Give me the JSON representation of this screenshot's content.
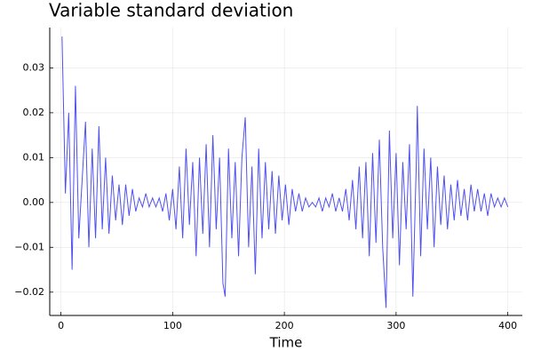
{
  "chart_data": {
    "type": "line",
    "title": "Variable standard deviation",
    "x_label": "Time",
    "x": [
      1,
      4,
      7,
      10,
      13,
      16,
      19,
      22,
      25,
      28,
      31,
      34,
      37,
      40,
      43,
      46,
      49,
      52,
      55,
      58,
      61,
      64,
      67,
      70,
      73,
      76,
      79,
      82,
      85,
      88,
      91,
      94,
      97,
      100,
      103,
      106,
      109,
      112,
      115,
      118,
      121,
      124,
      127,
      130,
      133,
      136,
      139,
      142,
      145,
      147,
      150,
      153,
      156,
      159,
      162,
      165,
      168,
      171,
      174,
      177,
      180,
      183,
      186,
      189,
      192,
      195,
      198,
      201,
      204,
      207,
      210,
      213,
      216,
      219,
      222,
      225,
      228,
      231,
      234,
      237,
      240,
      243,
      246,
      249,
      252,
      255,
      258,
      261,
      264,
      267,
      270,
      273,
      276,
      279,
      282,
      285,
      288,
      291,
      294,
      297,
      300,
      303,
      306,
      309,
      312,
      315,
      318,
      319,
      322,
      325,
      328,
      331,
      334,
      337,
      340,
      343,
      346,
      349,
      352,
      355,
      358,
      361,
      364,
      367,
      370,
      373,
      376,
      379,
      382,
      385,
      388,
      391,
      394,
      397,
      400
    ],
    "series": [
      {
        "color": "#5050f0",
        "values": [
          0.037,
          0.002,
          0.02,
          -0.015,
          0.026,
          -0.008,
          0.005,
          0.018,
          -0.01,
          0.012,
          -0.008,
          0.017,
          -0.006,
          0.01,
          -0.007,
          0.006,
          -0.004,
          0.004,
          -0.005,
          0.004,
          -0.003,
          0.003,
          -0.002,
          0.001,
          -0.001,
          0.002,
          -0.001,
          0.001,
          -0.001,
          0.001,
          -0.002,
          0.002,
          -0.004,
          0.003,
          -0.006,
          0.008,
          -0.008,
          0.012,
          -0.005,
          0.009,
          -0.012,
          0.01,
          -0.007,
          0.013,
          -0.01,
          0.015,
          -0.006,
          0.01,
          -0.018,
          -0.021,
          0.012,
          -0.008,
          0.009,
          -0.012,
          0.01,
          0.019,
          -0.01,
          0.008,
          -0.016,
          0.012,
          -0.008,
          0.009,
          -0.006,
          0.007,
          -0.007,
          0.006,
          -0.004,
          0.004,
          -0.005,
          0.003,
          -0.002,
          0.002,
          -0.002,
          0.001,
          -0.001,
          0.0,
          -0.001,
          0.001,
          -0.002,
          0.001,
          -0.001,
          0.002,
          -0.002,
          0.001,
          -0.002,
          0.003,
          -0.004,
          0.005,
          -0.006,
          0.008,
          -0.008,
          0.009,
          -0.012,
          0.011,
          -0.009,
          0.014,
          -0.01,
          -0.0235,
          0.016,
          -0.008,
          0.011,
          -0.014,
          0.009,
          -0.006,
          0.013,
          -0.021,
          0.008,
          0.0215,
          -0.012,
          0.012,
          -0.006,
          0.01,
          -0.01,
          0.008,
          -0.005,
          0.006,
          -0.006,
          0.004,
          -0.004,
          0.005,
          -0.003,
          0.003,
          -0.004,
          0.004,
          -0.002,
          0.003,
          -0.002,
          0.002,
          -0.003,
          0.002,
          -0.001,
          0.001,
          -0.001,
          0.001,
          -0.001
        ]
      }
    ],
    "xlim": [
      -10,
      413
    ],
    "ylim": [
      -0.0252,
      0.039
    ],
    "xticks": [
      0,
      100,
      200,
      300,
      400
    ],
    "yticks": [
      {
        "value": -0.02,
        "label": "−0.02"
      },
      {
        "value": -0.01,
        "label": "−0.01"
      },
      {
        "value": 0,
        "label": "0.00"
      },
      0.01,
      0.02,
      0.03
    ],
    "grid": true
  }
}
